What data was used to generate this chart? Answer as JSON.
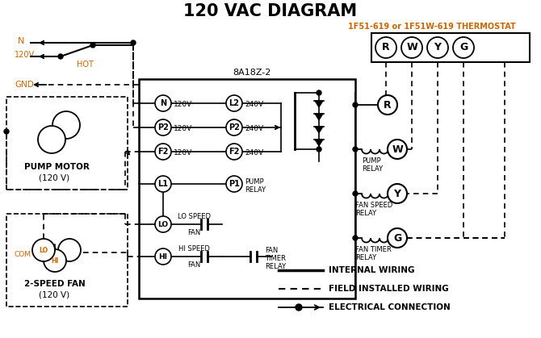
{
  "title": "120 VAC DIAGRAM",
  "bg_color": "#ffffff",
  "black": "#000000",
  "orange": "#cc6600",
  "thermostat_label": "1F51-619 or 1F51W-619 THERMOSTAT",
  "board_label": "8A18Z-2",
  "legend_items": [
    "INTERNAL WIRING",
    "FIELD INSTALLED WIRING",
    "ELECTRICAL CONNECTION"
  ],
  "fig_w": 6.7,
  "fig_h": 4.19,
  "dpi": 100
}
